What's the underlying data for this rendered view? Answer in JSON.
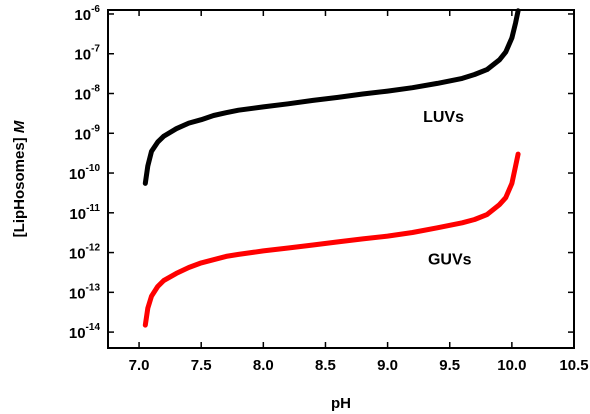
{
  "chart_data": {
    "type": "line",
    "xlabel": "pH",
    "ylabel": {
      "main": "[LipHosomes] ",
      "unit": "M"
    },
    "xlim": [
      6.75,
      10.5
    ],
    "ylim_log10": [
      -14.4,
      -5.9
    ],
    "y_scale": "log",
    "x_ticks": [
      {
        "value": 7.0,
        "label": "7.0"
      },
      {
        "value": 7.5,
        "label": "7.5"
      },
      {
        "value": 8.0,
        "label": "8.0"
      },
      {
        "value": 8.5,
        "label": "8.5"
      },
      {
        "value": 9.0,
        "label": "9.0"
      },
      {
        "value": 9.5,
        "label": "9.5"
      },
      {
        "value": 10.0,
        "label": "10.0"
      },
      {
        "value": 10.5,
        "label": "10.5"
      }
    ],
    "y_ticks": [
      {
        "value": 1e-06,
        "base": "10",
        "exponent": "-6"
      },
      {
        "value": 1e-07,
        "base": "10",
        "exponent": "-7"
      },
      {
        "value": 1e-08,
        "base": "10",
        "exponent": "-8"
      },
      {
        "value": 1e-09,
        "base": "10",
        "exponent": "-9"
      },
      {
        "value": 1e-10,
        "base": "10",
        "exponent": "-10"
      },
      {
        "value": 1e-11,
        "base": "10",
        "exponent": "-11"
      },
      {
        "value": 1e-12,
        "base": "10",
        "exponent": "-12"
      },
      {
        "value": 1e-13,
        "base": "10",
        "exponent": "-13"
      },
      {
        "value": 1e-14,
        "base": "10",
        "exponent": "-14"
      }
    ],
    "grid": false,
    "legend": "none",
    "series": [
      {
        "name": "LUVs",
        "color": "#000000",
        "x": [
          7.05,
          7.07,
          7.1,
          7.15,
          7.2,
          7.3,
          7.4,
          7.5,
          7.6,
          7.7,
          7.8,
          8.0,
          8.2,
          8.4,
          8.6,
          8.8,
          9.0,
          9.2,
          9.4,
          9.6,
          9.7,
          9.8,
          9.9,
          9.95,
          10.0,
          10.03,
          10.05
        ],
        "y": [
          5.5e-11,
          1.5e-10,
          3.5e-10,
          6e-10,
          8.5e-10,
          1.3e-09,
          1.8e-09,
          2.2e-09,
          2.8e-09,
          3.3e-09,
          3.8e-09,
          4.6e-09,
          5.5e-09,
          6.7e-09,
          8e-09,
          9.7e-09,
          1.15e-08,
          1.4e-08,
          1.8e-08,
          2.4e-08,
          3e-08,
          4e-08,
          7e-08,
          1.1e-07,
          2.5e-07,
          6e-07,
          1.2e-06
        ]
      },
      {
        "name": "GUVs",
        "color": "#ff0000",
        "x": [
          7.05,
          7.07,
          7.1,
          7.15,
          7.2,
          7.3,
          7.4,
          7.5,
          7.6,
          7.7,
          7.8,
          8.0,
          8.2,
          8.4,
          8.6,
          8.8,
          9.0,
          9.2,
          9.4,
          9.6,
          9.7,
          9.8,
          9.9,
          9.95,
          10.0,
          10.03,
          10.05
        ],
        "y": [
          1.5e-14,
          4e-14,
          8e-14,
          1.4e-13,
          2e-13,
          3e-13,
          4.2e-13,
          5.5e-13,
          6.6e-13,
          8e-13,
          9e-13,
          1.1e-12,
          1.3e-12,
          1.55e-12,
          1.85e-12,
          2.2e-12,
          2.6e-12,
          3.2e-12,
          4.2e-12,
          5.6e-12,
          6.8e-12,
          9e-12,
          1.6e-11,
          2.4e-11,
          5.5e-11,
          1.5e-10,
          3e-10
        ]
      }
    ],
    "annotations": [
      {
        "text": "LUVs",
        "x": 9.45,
        "y": 1.9e-09
      },
      {
        "text": "GUVs",
        "x": 9.5,
        "y": 5e-13
      }
    ]
  }
}
